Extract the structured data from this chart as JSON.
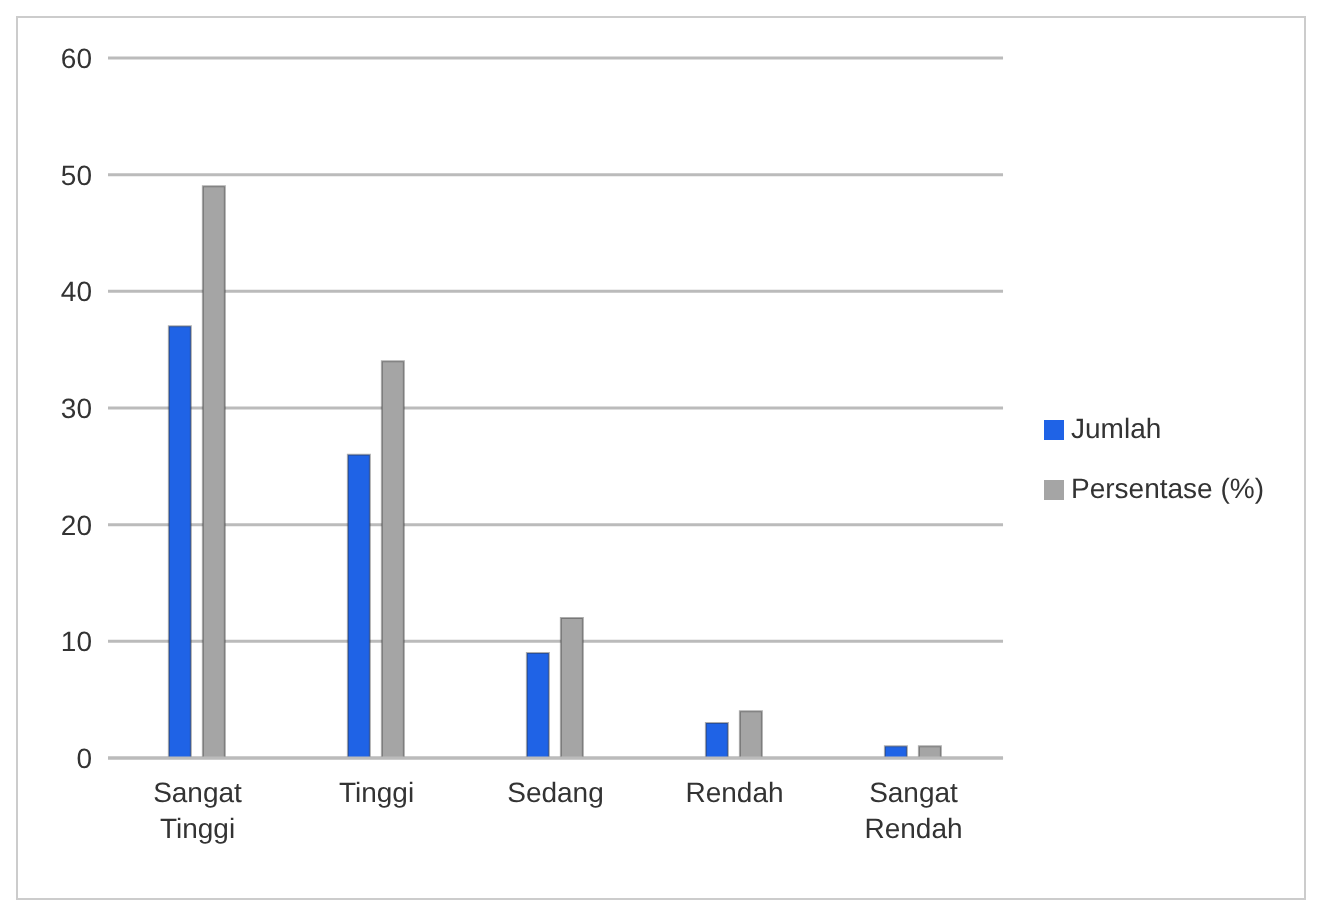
{
  "chart_data": {
    "type": "bar",
    "categories": [
      "Sangat Tinggi",
      "Tinggi",
      "Sedang",
      "Rendah",
      "Sangat Rendah"
    ],
    "series": [
      {
        "name": "Jumlah",
        "color": "#1f63e6",
        "values": [
          37,
          26,
          9,
          3,
          1
        ]
      },
      {
        "name": "Persentase (%)",
        "color": "#a5a5a5",
        "values": [
          49,
          34,
          12,
          4,
          1
        ]
      }
    ],
    "ylim": [
      0,
      60
    ],
    "yticks": [
      0,
      10,
      20,
      30,
      40,
      50,
      60
    ],
    "grid": "y",
    "legend": "right"
  }
}
